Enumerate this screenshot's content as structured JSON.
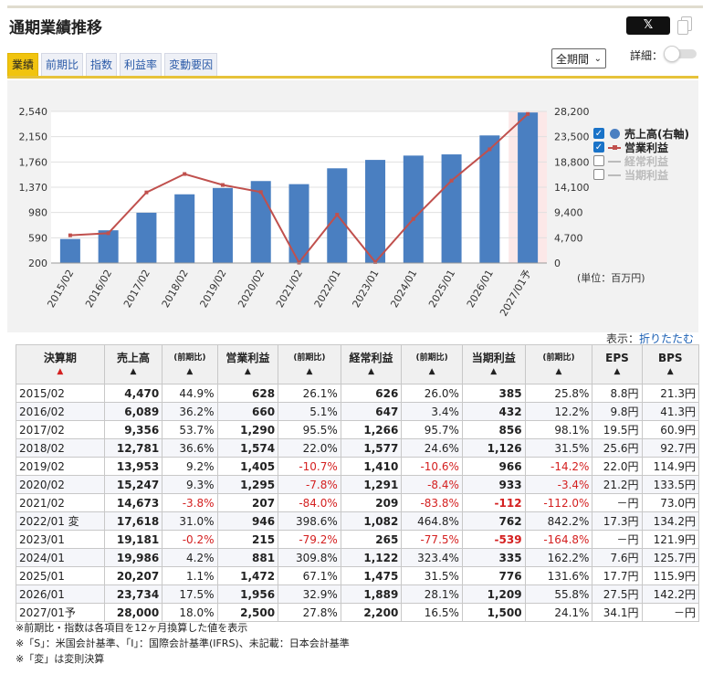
{
  "title": "通期業績推移",
  "share": {
    "x_label": "𝕏"
  },
  "tabs": [
    "業績",
    "前期比",
    "指数",
    "利益率",
    "変動要因"
  ],
  "period_select": "全期間",
  "detail_label": "詳細：",
  "legend": [
    {
      "label": "売上高(右軸)",
      "checked": true,
      "active": true,
      "marker": "circle",
      "color": "#4a7fc1"
    },
    {
      "label": "営業利益",
      "checked": true,
      "active": true,
      "marker": "line-square",
      "color": "#c0504d"
    },
    {
      "label": "経常利益",
      "checked": false,
      "active": false,
      "marker": "line",
      "color": "#bbbbbb"
    },
    {
      "label": "当期利益",
      "checked": false,
      "active": false,
      "marker": "line",
      "color": "#bbbbbb"
    }
  ],
  "unit_label": "(単位：百万円)",
  "display_label": "表示：",
  "display_link": "折りたたむ",
  "chart_data": {
    "type": "bar",
    "categories": [
      "2015/02",
      "2016/02",
      "2017/02",
      "2018/02",
      "2019/02",
      "2020/02",
      "2021/02",
      "2022/01",
      "2023/01",
      "2024/01",
      "2025/01",
      "2026/01",
      "2027/01予"
    ],
    "series": [
      {
        "name": "売上高(右軸)",
        "type": "bar",
        "axis": "right",
        "values": [
          4470,
          6089,
          9356,
          12781,
          13953,
          15247,
          14673,
          17618,
          19181,
          19986,
          20207,
          23734,
          28000
        ]
      },
      {
        "name": "営業利益",
        "type": "line",
        "axis": "left",
        "values": [
          628,
          660,
          1290,
          1574,
          1405,
          1295,
          207,
          946,
          215,
          881,
          1472,
          1956,
          2500
        ]
      }
    ],
    "left_axis": {
      "ticks": [
        200,
        590,
        980,
        1370,
        1760,
        2150,
        2540
      ],
      "range": [
        200,
        2540
      ]
    },
    "right_axis": {
      "ticks": [
        0,
        4700,
        9400,
        14100,
        18800,
        23500,
        28200
      ],
      "range": [
        0,
        28200
      ]
    },
    "forecast_index": 12,
    "legend_position": "right"
  },
  "table": {
    "headers": [
      {
        "label": "決算期",
        "sort": "▲",
        "sort_red": true
      },
      {
        "label": "売上高",
        "sort": "▲"
      },
      {
        "label": "(前期比)",
        "sort": "▲",
        "small": true
      },
      {
        "label": "営業利益",
        "sort": "▲"
      },
      {
        "label": "(前期比)",
        "sort": "▲",
        "small": true
      },
      {
        "label": "経常利益",
        "sort": "▲"
      },
      {
        "label": "(前期比)",
        "sort": "▲",
        "small": true
      },
      {
        "label": "当期利益",
        "sort": "▲"
      },
      {
        "label": "(前期比)",
        "sort": "▲",
        "small": true
      },
      {
        "label": "EPS",
        "sort": "▲"
      },
      {
        "label": "BPS",
        "sort": "▲"
      }
    ],
    "rows": [
      [
        "2015/02",
        "4,470",
        "44.9%",
        "628",
        "26.1%",
        "626",
        "26.0%",
        "385",
        "25.8%",
        "8.8円",
        "21.3円"
      ],
      [
        "2016/02",
        "6,089",
        "36.2%",
        "660",
        "5.1%",
        "647",
        "3.4%",
        "432",
        "12.2%",
        "9.8円",
        "41.3円"
      ],
      [
        "2017/02",
        "9,356",
        "53.7%",
        "1,290",
        "95.5%",
        "1,266",
        "95.7%",
        "856",
        "98.1%",
        "19.5円",
        "60.9円"
      ],
      [
        "2018/02",
        "12,781",
        "36.6%",
        "1,574",
        "22.0%",
        "1,577",
        "24.6%",
        "1,126",
        "31.5%",
        "25.6円",
        "92.7円"
      ],
      [
        "2019/02",
        "13,953",
        "9.2%",
        "1,405",
        "-10.7%",
        "1,410",
        "-10.6%",
        "966",
        "-14.2%",
        "22.0円",
        "114.9円"
      ],
      [
        "2020/02",
        "15,247",
        "9.3%",
        "1,295",
        "-7.8%",
        "1,291",
        "-8.4%",
        "933",
        "-3.4%",
        "21.2円",
        "133.5円"
      ],
      [
        "2021/02",
        "14,673",
        "-3.8%",
        "207",
        "-84.0%",
        "209",
        "-83.8%",
        "-112",
        "-112.0%",
        "－円",
        "73.0円"
      ],
      [
        "2022/01 変",
        "17,618",
        "31.0%",
        "946",
        "398.6%",
        "1,082",
        "464.8%",
        "762",
        "842.2%",
        "17.3円",
        "134.2円"
      ],
      [
        "2023/01",
        "19,181",
        "-0.2%",
        "215",
        "-79.2%",
        "265",
        "-77.5%",
        "-539",
        "-164.8%",
        "－円",
        "121.9円"
      ],
      [
        "2024/01",
        "19,986",
        "4.2%",
        "881",
        "309.8%",
        "1,122",
        "323.4%",
        "335",
        "162.2%",
        "7.6円",
        "125.7円"
      ],
      [
        "2025/01",
        "20,207",
        "1.1%",
        "1,472",
        "67.1%",
        "1,475",
        "31.5%",
        "776",
        "131.6%",
        "17.7円",
        "115.9円"
      ],
      [
        "2026/01",
        "23,734",
        "17.5%",
        "1,956",
        "32.9%",
        "1,889",
        "28.1%",
        "1,209",
        "55.8%",
        "27.5円",
        "142.2円"
      ],
      [
        "2027/01予",
        "28,000",
        "18.0%",
        "2,500",
        "27.8%",
        "2,200",
        "16.5%",
        "1,500",
        "24.1%",
        "34.1円",
        "－円"
      ]
    ]
  },
  "notes": [
    "※前期比・指数は各項目を12ヶ月換算した値を表示",
    "※「S」：米国会計基準、「I」：国際会計基準(IFRS)、未記載：日本会計基準",
    "※「変」は変則決算"
  ]
}
